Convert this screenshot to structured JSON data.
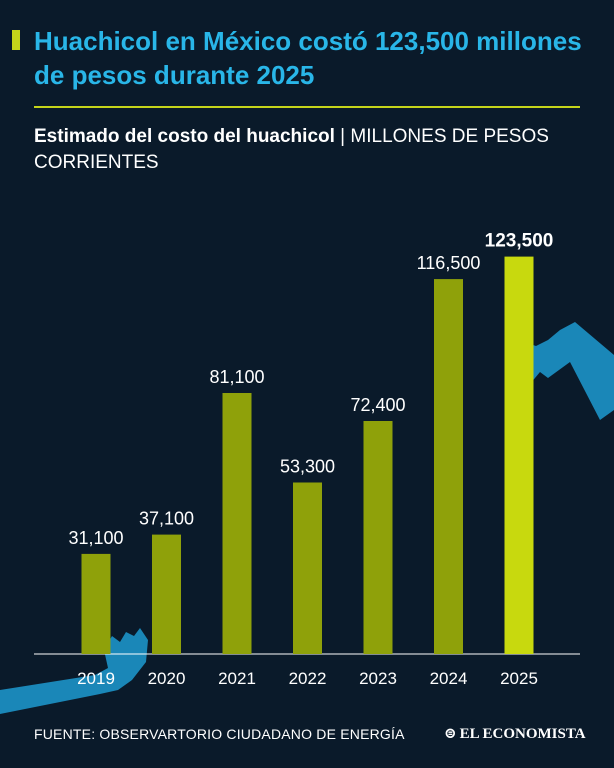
{
  "headline": "Huachicol en México costó 123,500 millones de pesos durante 2025",
  "subtitle": {
    "bold": "Estimado del costo del huachicol",
    "separator": " | ",
    "light": "MILLONES DE PESOS CORRIENTES"
  },
  "colors": {
    "background": "#0a1a2a",
    "headline": "#29b6e8",
    "accent": "#c5d41a",
    "bar": "#8fa10a",
    "bar_highlight": "#c8d90e",
    "hand": "#1a87b8"
  },
  "chart_data": {
    "type": "bar",
    "title": "Estimado del costo del huachicol",
    "ylabel": "MILLONES DE PESOS CORRIENTES",
    "xlabel": "",
    "categories": [
      "2019",
      "2020",
      "2021",
      "2022",
      "2023",
      "2024",
      "2025"
    ],
    "values": [
      31100,
      37100,
      81100,
      53300,
      72400,
      116500,
      123500
    ],
    "value_labels": [
      "31,100",
      "37,100",
      "81,100",
      "53,300",
      "72,400",
      "116,500",
      "123,500"
    ],
    "highlight": "2025",
    "ylim": [
      0,
      124000
    ],
    "grid": false
  },
  "footer": {
    "source": "FUENTE: OBSERVARTORIO CIUDADANO DE ENERGÍA",
    "brand": "EL ECONOMISTA"
  }
}
